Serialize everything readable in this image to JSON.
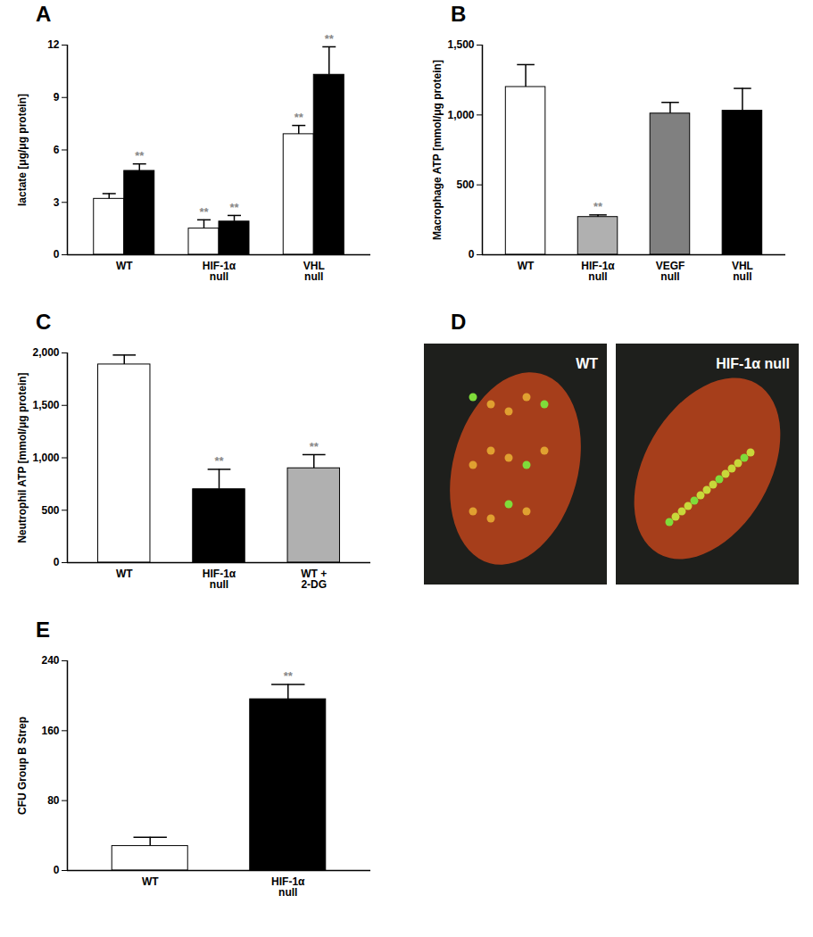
{
  "chart_data": [
    {
      "type": "bar",
      "title": "A",
      "ylabel": "lactate [μg/μg protein]",
      "categories": [
        "WT",
        "HIF-1α null",
        "VHL null"
      ],
      "ylim": [
        0,
        12
      ],
      "yticks": [
        0,
        3,
        6,
        9,
        12
      ],
      "series": [
        {
          "color": "#ffffff",
          "values": [
            3.2,
            1.5,
            6.9
          ],
          "errors": [
            0.3,
            0.5,
            0.5
          ],
          "annotations": [
            null,
            "**",
            "**"
          ]
        },
        {
          "color": "#000000",
          "values": [
            4.8,
            1.9,
            10.3
          ],
          "errors": [
            0.4,
            0.35,
            1.6
          ],
          "annotations": [
            "**",
            "**",
            "**"
          ]
        }
      ]
    },
    {
      "type": "bar",
      "title": "B",
      "ylabel": "Macrophage ATP [mmol/μg protein]",
      "categories": [
        "WT",
        "HIF-1α null",
        "VEGF null",
        "VHL null"
      ],
      "ylim": [
        0,
        1500
      ],
      "yticks": [
        0,
        500,
        1000,
        1500
      ],
      "values": [
        1200,
        270,
        1010,
        1030
      ],
      "errors": [
        160,
        15,
        80,
        160
      ],
      "annotations": [
        null,
        "**",
        null,
        null
      ],
      "colors": [
        "#ffffff",
        "#b0b0b0",
        "#808080",
        "#000000"
      ]
    },
    {
      "type": "bar",
      "title": "C",
      "ylabel": "Neutrophil ATP [mmol/μg protein]",
      "categories": [
        "WT",
        "HIF-1α null",
        "WT + 2-DG"
      ],
      "ylim": [
        0,
        2000
      ],
      "yticks": [
        0,
        500,
        1000,
        1500,
        2000
      ],
      "values": [
        1890,
        700,
        900
      ],
      "errors": [
        90,
        190,
        130
      ],
      "annotations": [
        null,
        "**",
        "**"
      ],
      "colors": [
        "#ffffff",
        "#000000",
        "#b0b0b0"
      ]
    },
    {
      "type": "image",
      "title": "D",
      "categories": [
        "WT",
        "HIF-1α null"
      ]
    },
    {
      "type": "bar",
      "title": "E",
      "ylabel": "CFU Group B Strep",
      "categories": [
        "WT",
        "HIF-1α null"
      ],
      "ylim": [
        0,
        240
      ],
      "yticks": [
        0,
        80,
        160,
        240
      ],
      "values": [
        28,
        196
      ],
      "errors": [
        10,
        17
      ],
      "annotations": [
        null,
        "**"
      ],
      "colors": [
        "#ffffff",
        "#000000"
      ]
    }
  ]
}
